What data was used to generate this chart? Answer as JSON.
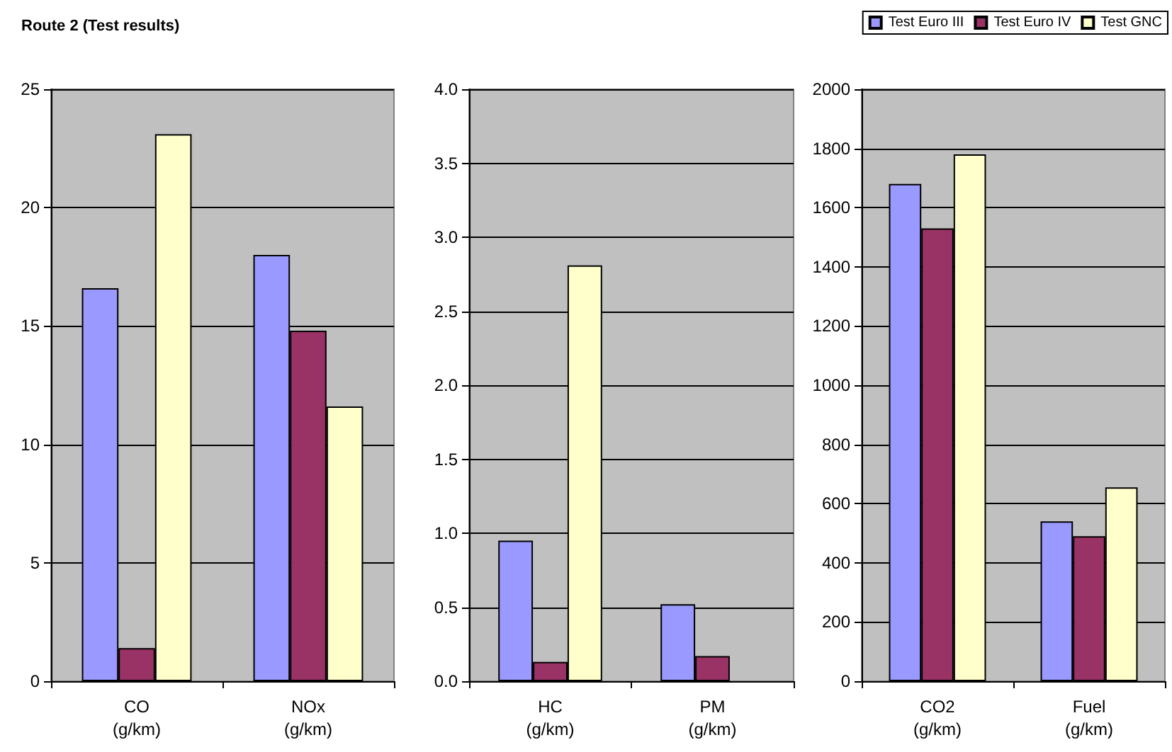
{
  "chart_data": [
    {
      "type": "bar",
      "title": "Route 2 (Test results)",
      "categories": [
        "CO\n(g/km)",
        "NOx\n(g/km)"
      ],
      "series": [
        {
          "color": "#9999ff",
          "values": [
            16.6,
            18.0
          ]
        },
        {
          "color": "#993366",
          "values": [
            1.4,
            14.8
          ]
        },
        {
          "color": "#ffffcc",
          "values": [
            23.1,
            11.6
          ]
        }
      ],
      "ylim": [
        0,
        25
      ],
      "yticks": [
        0,
        5,
        10,
        15,
        20,
        25
      ],
      "grid": "y",
      "legend": false
    },
    {
      "type": "bar",
      "categories": [
        "HC\n(g/km)",
        "PM\n(g/km)"
      ],
      "series": [
        {
          "color": "#9999ff",
          "values": [
            0.95,
            0.52
          ]
        },
        {
          "color": "#993366",
          "values": [
            0.13,
            0.17
          ]
        },
        {
          "color": "#ffffcc",
          "values": [
            2.81,
            null
          ]
        }
      ],
      "ylim": [
        0,
        4
      ],
      "yticks": [
        {
          "value": 0,
          "label": "0.0"
        },
        {
          "value": 0.5,
          "label": "0.5"
        },
        {
          "value": 1,
          "label": "1.0"
        },
        {
          "value": 1.5,
          "label": "1.5"
        },
        {
          "value": 2,
          "label": "2.0"
        },
        {
          "value": 2.5,
          "label": "2.5"
        },
        {
          "value": 3,
          "label": "3.0"
        },
        {
          "value": 3.5,
          "label": "3.5"
        },
        {
          "value": 4,
          "label": "4.0"
        }
      ],
      "grid": "y",
      "legend": false
    },
    {
      "type": "bar",
      "categories": [
        "CO2\n(g/km)",
        "Fuel\n(g/km)"
      ],
      "series": [
        {
          "name": "Test Euro III",
          "color": "#9999ff",
          "values": [
            1680,
            540
          ]
        },
        {
          "name": "Test Euro IV",
          "color": "#993366",
          "values": [
            1530,
            490
          ]
        },
        {
          "name": "Test GNC",
          "color": "#ffffcc",
          "values": [
            1780,
            655
          ]
        }
      ],
      "ylim": [
        0,
        2000
      ],
      "yticks": [
        0,
        200,
        400,
        600,
        800,
        1000,
        1200,
        1400,
        1600,
        1800,
        2000
      ],
      "grid": "y",
      "legend": "top right"
    }
  ]
}
